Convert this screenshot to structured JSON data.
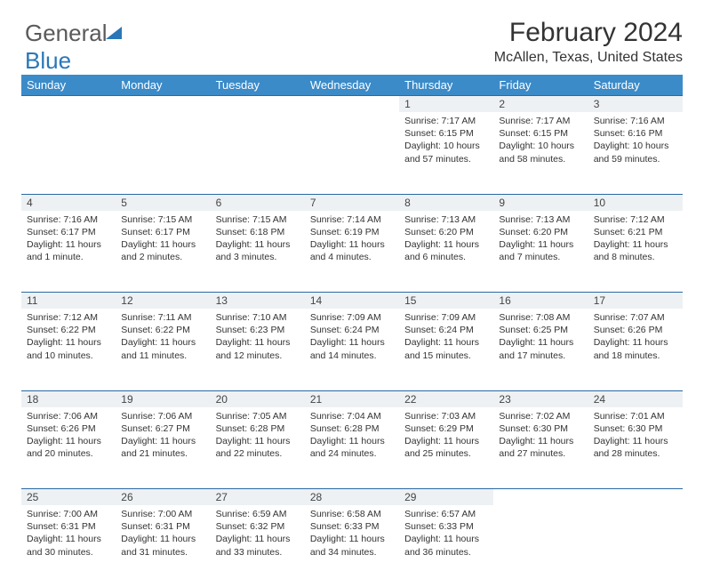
{
  "logo": {
    "word1": "General",
    "word2": "Blue"
  },
  "header": {
    "title": "February 2024",
    "location": "McAllen, Texas, United States"
  },
  "styling": {
    "header_bg": "#3b8bc9",
    "header_text": "#ffffff",
    "daynum_bg": "#eef1f3",
    "border_color": "#2a6aa3",
    "page_bg": "#ffffff",
    "body_text": "#333333",
    "logo_gray": "#5a5a5a",
    "logo_blue": "#2a77b8",
    "title_fontsize": 30,
    "location_fontsize": 16,
    "dayhead_fontsize": 13,
    "daynum_fontsize": 12,
    "cell_fontsize": 10.5
  },
  "day_names": [
    "Sunday",
    "Monday",
    "Tuesday",
    "Wednesday",
    "Thursday",
    "Friday",
    "Saturday"
  ],
  "weeks": [
    [
      null,
      null,
      null,
      null,
      {
        "n": "1",
        "sunrise": "7:17 AM",
        "sunset": "6:15 PM",
        "daylight": "10 hours and 57 minutes."
      },
      {
        "n": "2",
        "sunrise": "7:17 AM",
        "sunset": "6:15 PM",
        "daylight": "10 hours and 58 minutes."
      },
      {
        "n": "3",
        "sunrise": "7:16 AM",
        "sunset": "6:16 PM",
        "daylight": "10 hours and 59 minutes."
      }
    ],
    [
      {
        "n": "4",
        "sunrise": "7:16 AM",
        "sunset": "6:17 PM",
        "daylight": "11 hours and 1 minute."
      },
      {
        "n": "5",
        "sunrise": "7:15 AM",
        "sunset": "6:17 PM",
        "daylight": "11 hours and 2 minutes."
      },
      {
        "n": "6",
        "sunrise": "7:15 AM",
        "sunset": "6:18 PM",
        "daylight": "11 hours and 3 minutes."
      },
      {
        "n": "7",
        "sunrise": "7:14 AM",
        "sunset": "6:19 PM",
        "daylight": "11 hours and 4 minutes."
      },
      {
        "n": "8",
        "sunrise": "7:13 AM",
        "sunset": "6:20 PM",
        "daylight": "11 hours and 6 minutes."
      },
      {
        "n": "9",
        "sunrise": "7:13 AM",
        "sunset": "6:20 PM",
        "daylight": "11 hours and 7 minutes."
      },
      {
        "n": "10",
        "sunrise": "7:12 AM",
        "sunset": "6:21 PM",
        "daylight": "11 hours and 8 minutes."
      }
    ],
    [
      {
        "n": "11",
        "sunrise": "7:12 AM",
        "sunset": "6:22 PM",
        "daylight": "11 hours and 10 minutes."
      },
      {
        "n": "12",
        "sunrise": "7:11 AM",
        "sunset": "6:22 PM",
        "daylight": "11 hours and 11 minutes."
      },
      {
        "n": "13",
        "sunrise": "7:10 AM",
        "sunset": "6:23 PM",
        "daylight": "11 hours and 12 minutes."
      },
      {
        "n": "14",
        "sunrise": "7:09 AM",
        "sunset": "6:24 PM",
        "daylight": "11 hours and 14 minutes."
      },
      {
        "n": "15",
        "sunrise": "7:09 AM",
        "sunset": "6:24 PM",
        "daylight": "11 hours and 15 minutes."
      },
      {
        "n": "16",
        "sunrise": "7:08 AM",
        "sunset": "6:25 PM",
        "daylight": "11 hours and 17 minutes."
      },
      {
        "n": "17",
        "sunrise": "7:07 AM",
        "sunset": "6:26 PM",
        "daylight": "11 hours and 18 minutes."
      }
    ],
    [
      {
        "n": "18",
        "sunrise": "7:06 AM",
        "sunset": "6:26 PM",
        "daylight": "11 hours and 20 minutes."
      },
      {
        "n": "19",
        "sunrise": "7:06 AM",
        "sunset": "6:27 PM",
        "daylight": "11 hours and 21 minutes."
      },
      {
        "n": "20",
        "sunrise": "7:05 AM",
        "sunset": "6:28 PM",
        "daylight": "11 hours and 22 minutes."
      },
      {
        "n": "21",
        "sunrise": "7:04 AM",
        "sunset": "6:28 PM",
        "daylight": "11 hours and 24 minutes."
      },
      {
        "n": "22",
        "sunrise": "7:03 AM",
        "sunset": "6:29 PM",
        "daylight": "11 hours and 25 minutes."
      },
      {
        "n": "23",
        "sunrise": "7:02 AM",
        "sunset": "6:30 PM",
        "daylight": "11 hours and 27 minutes."
      },
      {
        "n": "24",
        "sunrise": "7:01 AM",
        "sunset": "6:30 PM",
        "daylight": "11 hours and 28 minutes."
      }
    ],
    [
      {
        "n": "25",
        "sunrise": "7:00 AM",
        "sunset": "6:31 PM",
        "daylight": "11 hours and 30 minutes."
      },
      {
        "n": "26",
        "sunrise": "7:00 AM",
        "sunset": "6:31 PM",
        "daylight": "11 hours and 31 minutes."
      },
      {
        "n": "27",
        "sunrise": "6:59 AM",
        "sunset": "6:32 PM",
        "daylight": "11 hours and 33 minutes."
      },
      {
        "n": "28",
        "sunrise": "6:58 AM",
        "sunset": "6:33 PM",
        "daylight": "11 hours and 34 minutes."
      },
      {
        "n": "29",
        "sunrise": "6:57 AM",
        "sunset": "6:33 PM",
        "daylight": "11 hours and 36 minutes."
      },
      null,
      null
    ]
  ],
  "labels": {
    "sunrise": "Sunrise:",
    "sunset": "Sunset:",
    "daylight": "Daylight:"
  }
}
